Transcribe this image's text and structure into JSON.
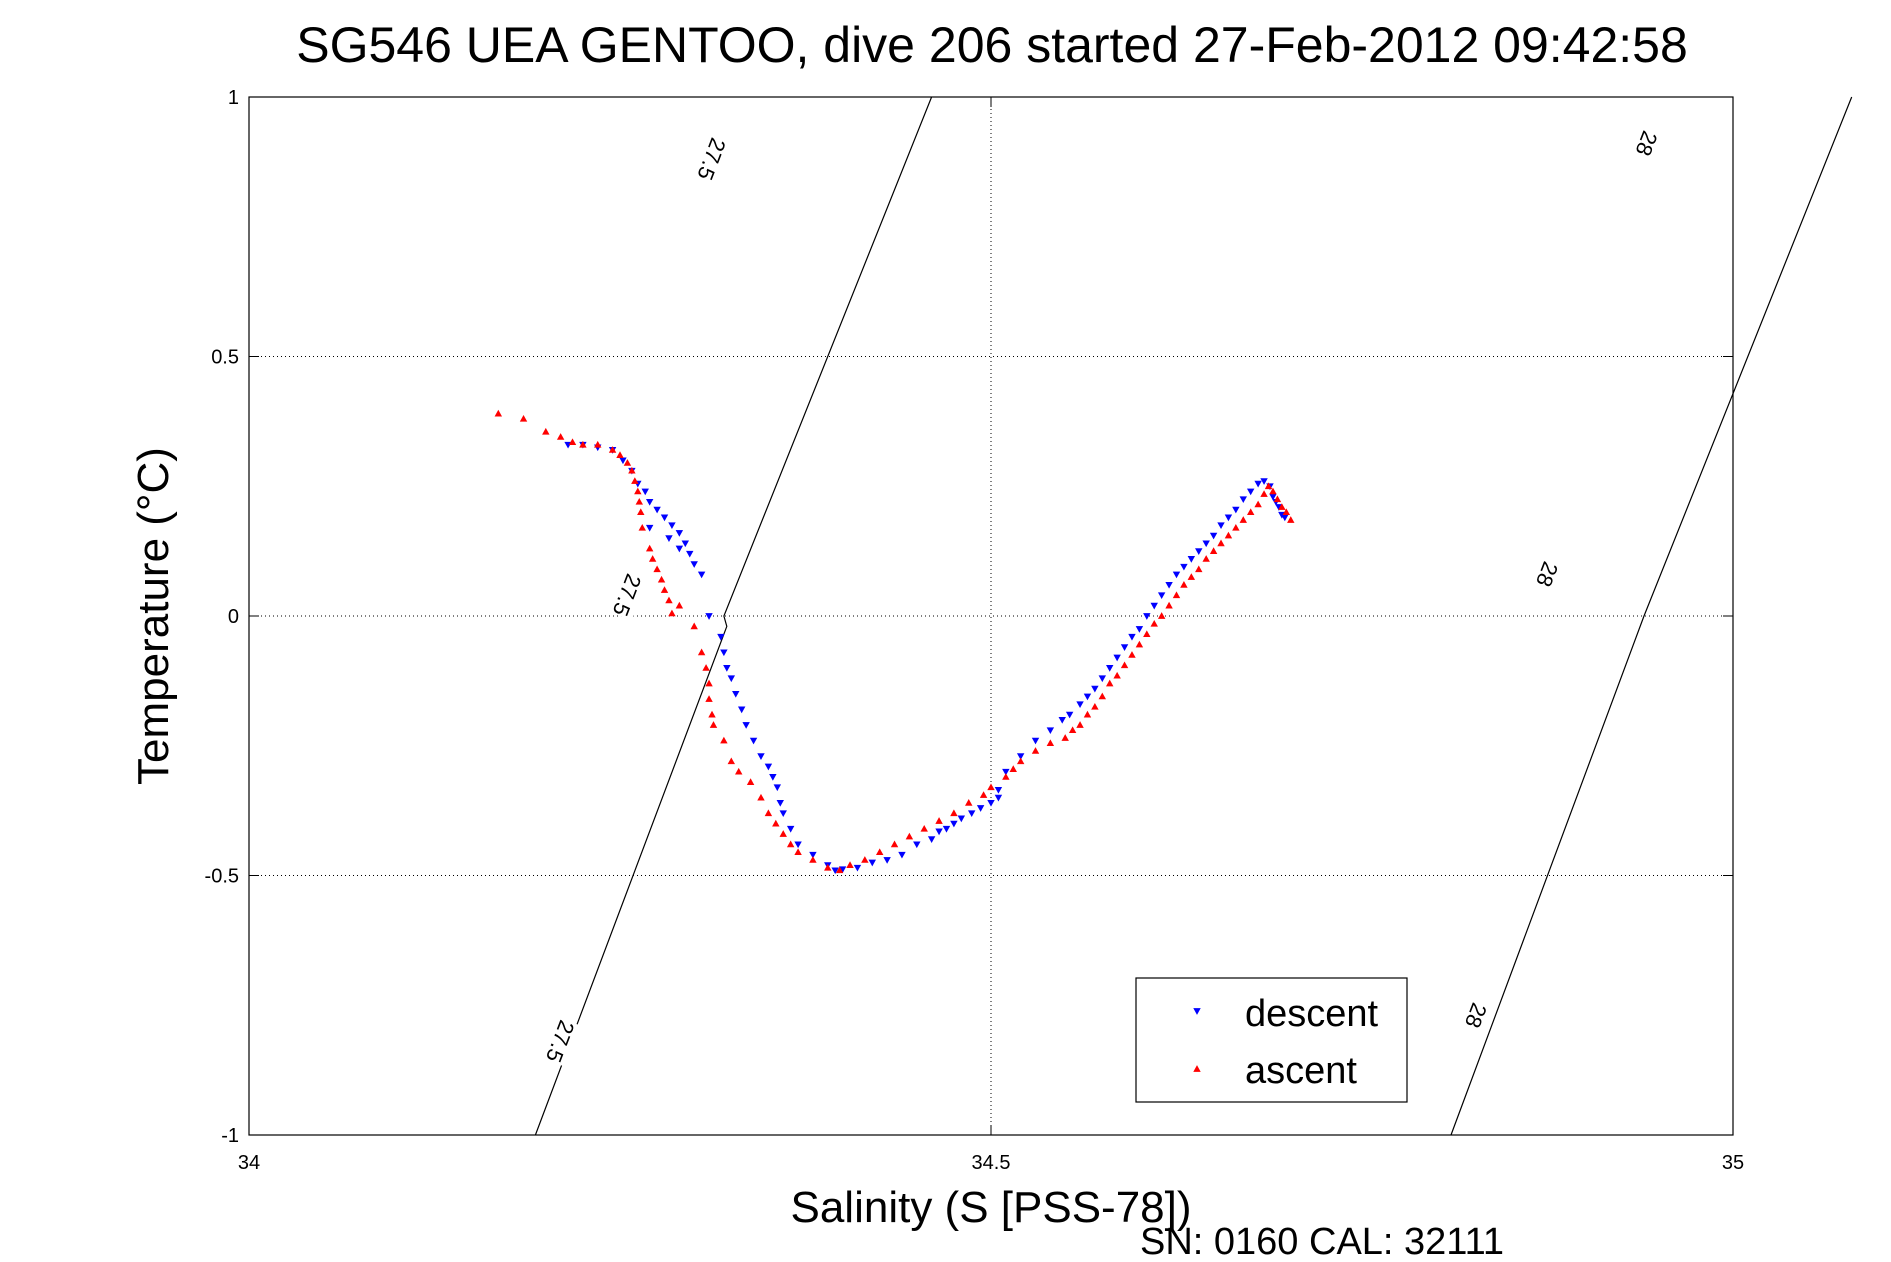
{
  "chart_data": {
    "type": "scatter",
    "title": "SG546 UEA GENTOO, dive 206 started 27-Feb-2012 09:42:58",
    "xlabel": "Salinity (S [PSS-78])",
    "ylabel": "Temperature (°C)",
    "xlim": [
      34,
      35
    ],
    "ylim": [
      -1,
      1
    ],
    "x_ticks": [
      34,
      34.5,
      35
    ],
    "x_tick_labels": [
      "34",
      "34.5",
      "35"
    ],
    "y_ticks": [
      1,
      0.5,
      0,
      -0.5,
      -1
    ],
    "y_tick_labels": [
      "1",
      "0.5",
      "0",
      "-0.5",
      "-1"
    ],
    "grid": true,
    "legend_position": "bottom-right",
    "footnote": "SN: 0160  CAL: 32111",
    "density_contours": [
      {
        "label": "27.5",
        "points": [
          [
            34.193,
            -1.0
          ],
          [
            34.322,
            -0.02
          ],
          [
            34.32,
            0.0
          ],
          [
            34.46,
            1.0
          ]
        ],
        "label_positions": [
          [
            34.21,
            -0.82
          ],
          [
            34.255,
            0.04
          ],
          [
            34.312,
            0.88
          ]
        ]
      },
      {
        "label": "28",
        "points": [
          [
            34.81,
            -1.0
          ],
          [
            34.94,
            0.0
          ],
          [
            35.08,
            1.0
          ]
        ],
        "label_positions": [
          [
            34.827,
            -0.77
          ],
          [
            34.875,
            0.08
          ],
          [
            34.942,
            0.91
          ]
        ]
      }
    ],
    "series": [
      {
        "name": "descent",
        "color": "#0000ff",
        "marker": "triangle-down",
        "points": [
          [
            34.215,
            0.33
          ],
          [
            34.225,
            0.33
          ],
          [
            34.235,
            0.325
          ],
          [
            34.245,
            0.32
          ],
          [
            34.252,
            0.3
          ],
          [
            34.258,
            0.28
          ],
          [
            34.262,
            0.255
          ],
          [
            34.267,
            0.24
          ],
          [
            34.27,
            0.22
          ],
          [
            34.275,
            0.205
          ],
          [
            34.28,
            0.19
          ],
          [
            34.285,
            0.175
          ],
          [
            34.29,
            0.16
          ],
          [
            34.294,
            0.14
          ],
          [
            34.297,
            0.12
          ],
          [
            34.3,
            0.1
          ],
          [
            34.305,
            0.08
          ],
          [
            34.29,
            0.13
          ],
          [
            34.283,
            0.15
          ],
          [
            34.27,
            0.17
          ],
          [
            34.31,
            0.0
          ],
          [
            34.318,
            -0.04
          ],
          [
            34.32,
            -0.07
          ],
          [
            34.322,
            -0.1
          ],
          [
            34.325,
            -0.12
          ],
          [
            34.328,
            -0.15
          ],
          [
            34.332,
            -0.18
          ],
          [
            34.335,
            -0.21
          ],
          [
            34.34,
            -0.24
          ],
          [
            34.345,
            -0.27
          ],
          [
            34.35,
            -0.29
          ],
          [
            34.353,
            -0.31
          ],
          [
            34.356,
            -0.33
          ],
          [
            34.358,
            -0.36
          ],
          [
            34.36,
            -0.38
          ],
          [
            34.365,
            -0.41
          ],
          [
            34.37,
            -0.44
          ],
          [
            34.38,
            -0.46
          ],
          [
            34.39,
            -0.48
          ],
          [
            34.395,
            -0.49
          ],
          [
            34.4,
            -0.488
          ],
          [
            34.41,
            -0.485
          ],
          [
            34.42,
            -0.475
          ],
          [
            34.43,
            -0.47
          ],
          [
            34.44,
            -0.46
          ],
          [
            34.45,
            -0.44
          ],
          [
            34.46,
            -0.43
          ],
          [
            34.465,
            -0.415
          ],
          [
            34.47,
            -0.41
          ],
          [
            34.475,
            -0.4
          ],
          [
            34.48,
            -0.39
          ],
          [
            34.487,
            -0.38
          ],
          [
            34.493,
            -0.37
          ],
          [
            34.5,
            -0.36
          ],
          [
            34.505,
            -0.35
          ],
          [
            34.505,
            -0.335
          ],
          [
            34.51,
            -0.3
          ],
          [
            34.52,
            -0.27
          ],
          [
            34.53,
            -0.24
          ],
          [
            34.54,
            -0.22
          ],
          [
            34.548,
            -0.2
          ],
          [
            34.553,
            -0.19
          ],
          [
            34.56,
            -0.17
          ],
          [
            34.565,
            -0.155
          ],
          [
            34.57,
            -0.14
          ],
          [
            34.575,
            -0.12
          ],
          [
            34.58,
            -0.1
          ],
          [
            34.585,
            -0.08
          ],
          [
            34.59,
            -0.06
          ],
          [
            34.595,
            -0.04
          ],
          [
            34.6,
            -0.025
          ],
          [
            34.605,
            0.0
          ],
          [
            34.61,
            0.02
          ],
          [
            34.615,
            0.04
          ],
          [
            34.62,
            0.06
          ],
          [
            34.625,
            0.08
          ],
          [
            34.63,
            0.095
          ],
          [
            34.635,
            0.11
          ],
          [
            34.64,
            0.125
          ],
          [
            34.645,
            0.14
          ],
          [
            34.65,
            0.155
          ],
          [
            34.655,
            0.175
          ],
          [
            34.66,
            0.19
          ],
          [
            34.665,
            0.205
          ],
          [
            34.67,
            0.225
          ],
          [
            34.675,
            0.24
          ],
          [
            34.68,
            0.255
          ],
          [
            34.684,
            0.26
          ],
          [
            34.688,
            0.25
          ],
          [
            34.69,
            0.23
          ],
          [
            34.692,
            0.22
          ],
          [
            34.694,
            0.21
          ],
          [
            34.696,
            0.195
          ],
          [
            34.698,
            0.19
          ]
        ]
      },
      {
        "name": "ascent",
        "color": "#ff0000",
        "marker": "triangle-up",
        "points": [
          [
            34.168,
            0.39
          ],
          [
            34.185,
            0.38
          ],
          [
            34.2,
            0.355
          ],
          [
            34.21,
            0.345
          ],
          [
            34.218,
            0.335
          ],
          [
            34.225,
            0.33
          ],
          [
            34.235,
            0.33
          ],
          [
            34.245,
            0.32
          ],
          [
            34.25,
            0.31
          ],
          [
            34.255,
            0.295
          ],
          [
            34.258,
            0.28
          ],
          [
            34.26,
            0.26
          ],
          [
            34.262,
            0.24
          ],
          [
            34.263,
            0.22
          ],
          [
            34.264,
            0.2
          ],
          [
            34.265,
            0.17
          ],
          [
            34.27,
            0.13
          ],
          [
            34.272,
            0.11
          ],
          [
            34.275,
            0.09
          ],
          [
            34.278,
            0.07
          ],
          [
            34.28,
            0.05
          ],
          [
            34.283,
            0.03
          ],
          [
            34.285,
            0.005
          ],
          [
            34.29,
            0.02
          ],
          [
            34.3,
            -0.02
          ],
          [
            34.305,
            -0.07
          ],
          [
            34.308,
            -0.1
          ],
          [
            34.31,
            -0.13
          ],
          [
            34.31,
            -0.16
          ],
          [
            34.312,
            -0.19
          ],
          [
            34.313,
            -0.21
          ],
          [
            34.32,
            -0.24
          ],
          [
            34.325,
            -0.28
          ],
          [
            34.33,
            -0.3
          ],
          [
            34.338,
            -0.32
          ],
          [
            34.345,
            -0.35
          ],
          [
            34.35,
            -0.38
          ],
          [
            34.355,
            -0.4
          ],
          [
            34.36,
            -0.42
          ],
          [
            34.365,
            -0.44
          ],
          [
            34.37,
            -0.455
          ],
          [
            34.38,
            -0.47
          ],
          [
            34.39,
            -0.485
          ],
          [
            34.398,
            -0.49
          ],
          [
            34.405,
            -0.48
          ],
          [
            34.415,
            -0.47
          ],
          [
            34.425,
            -0.455
          ],
          [
            34.435,
            -0.44
          ],
          [
            34.445,
            -0.425
          ],
          [
            34.455,
            -0.41
          ],
          [
            34.465,
            -0.395
          ],
          [
            34.475,
            -0.38
          ],
          [
            34.485,
            -0.36
          ],
          [
            34.495,
            -0.345
          ],
          [
            34.5,
            -0.33
          ],
          [
            34.51,
            -0.31
          ],
          [
            34.515,
            -0.295
          ],
          [
            34.52,
            -0.28
          ],
          [
            34.53,
            -0.26
          ],
          [
            34.54,
            -0.245
          ],
          [
            34.55,
            -0.235
          ],
          [
            34.555,
            -0.22
          ],
          [
            34.56,
            -0.21
          ],
          [
            34.565,
            -0.19
          ],
          [
            34.57,
            -0.175
          ],
          [
            34.575,
            -0.155
          ],
          [
            34.58,
            -0.13
          ],
          [
            34.585,
            -0.115
          ],
          [
            34.59,
            -0.095
          ],
          [
            34.595,
            -0.075
          ],
          [
            34.6,
            -0.055
          ],
          [
            34.605,
            -0.035
          ],
          [
            34.61,
            -0.015
          ],
          [
            34.615,
            0.0
          ],
          [
            34.62,
            0.02
          ],
          [
            34.625,
            0.04
          ],
          [
            34.63,
            0.06
          ],
          [
            34.635,
            0.075
          ],
          [
            34.64,
            0.09
          ],
          [
            34.645,
            0.11
          ],
          [
            34.65,
            0.125
          ],
          [
            34.655,
            0.14
          ],
          [
            34.66,
            0.155
          ],
          [
            34.665,
            0.17
          ],
          [
            34.67,
            0.185
          ],
          [
            34.675,
            0.2
          ],
          [
            34.68,
            0.215
          ],
          [
            34.684,
            0.235
          ],
          [
            34.687,
            0.25
          ],
          [
            34.69,
            0.24
          ],
          [
            34.693,
            0.225
          ],
          [
            34.696,
            0.21
          ],
          [
            34.699,
            0.2
          ],
          [
            34.702,
            0.185
          ]
        ]
      }
    ]
  }
}
